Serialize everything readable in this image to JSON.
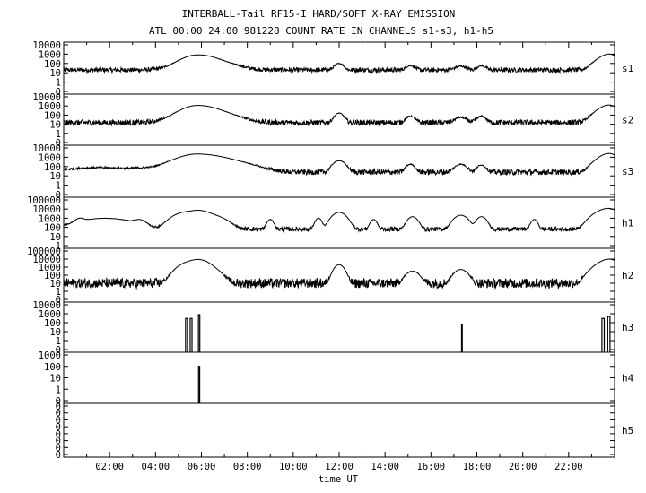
{
  "chart_data": {
    "type": "line",
    "title": "INTERBALL-Tail RF15-I HARD/SOFT X-RAY EMISSION",
    "subtitle": "ATL 00:00 24:00 981228  COUNT RATE IN CHANNELS s1-s3, h1-h5",
    "xlabel": "time UT",
    "x_range_hours": [
      0,
      24
    ],
    "x_ticks": [
      "02:00",
      "04:00",
      "06:00",
      "08:00",
      "10:00",
      "12:00",
      "14:00",
      "16:00",
      "18:00",
      "20:00",
      "22:00"
    ],
    "y_scale": "log",
    "grid": false,
    "panels": [
      {
        "name": "s1",
        "ytick_labels": [
          "10000",
          "1000",
          "100",
          "10",
          "1",
          "0"
        ],
        "baseline": 20,
        "noise": 0.25,
        "events": [
          [
            5.6,
            60,
            0.25
          ],
          [
            5.9,
            600,
            0.5
          ],
          [
            6.2,
            200,
            0.8
          ],
          [
            12.0,
            80,
            0.15
          ],
          [
            15.1,
            40,
            0.15
          ],
          [
            17.3,
            30,
            0.2
          ],
          [
            18.2,
            40,
            0.15
          ],
          [
            23.5,
            300,
            0.3
          ],
          [
            23.8,
            800,
            0.25
          ]
        ]
      },
      {
        "name": "s2",
        "ytick_labels": [
          "10000",
          "1000",
          "100",
          "10",
          "1",
          "0"
        ],
        "baseline": 15,
        "noise": 0.3,
        "events": [
          [
            5.6,
            100,
            0.25
          ],
          [
            5.9,
            800,
            0.5
          ],
          [
            6.2,
            300,
            0.8
          ],
          [
            12.0,
            150,
            0.15
          ],
          [
            15.1,
            60,
            0.15
          ],
          [
            17.3,
            40,
            0.2
          ],
          [
            18.2,
            60,
            0.15
          ],
          [
            23.5,
            400,
            0.3
          ],
          [
            23.8,
            1000,
            0.25
          ]
        ]
      },
      {
        "name": "s3",
        "ytick_labels": [
          "10000",
          "1000",
          "100",
          "10",
          "1",
          "0"
        ],
        "baseline": 25,
        "noise": 0.3,
        "events": [
          [
            1.5,
            50,
            1.2
          ],
          [
            3.5,
            30,
            0.5
          ],
          [
            5.6,
            300,
            0.3
          ],
          [
            5.9,
            1500,
            0.7
          ],
          [
            6.5,
            600,
            1.0
          ],
          [
            12.0,
            400,
            0.2
          ],
          [
            15.1,
            150,
            0.15
          ],
          [
            17.3,
            150,
            0.2
          ],
          [
            18.2,
            120,
            0.15
          ],
          [
            23.5,
            800,
            0.3
          ],
          [
            23.8,
            2000,
            0.25
          ]
        ]
      },
      {
        "name": "h1",
        "ytick_labels": [
          "100000",
          "10000",
          "1000",
          "100",
          "10",
          "1"
        ],
        "baseline": 10,
        "noise": 0.3,
        "events": [
          [
            0.7,
            200,
            0.15
          ],
          [
            1.8,
            300,
            0.8
          ],
          [
            3.3,
            150,
            0.2
          ],
          [
            5.3,
            2000,
            0.35
          ],
          [
            5.9,
            3000,
            0.3
          ],
          [
            6.4,
            800,
            0.4
          ],
          [
            9.0,
            200,
            0.1
          ],
          [
            11.1,
            300,
            0.1
          ],
          [
            12.0,
            2000,
            0.2
          ],
          [
            13.5,
            200,
            0.1
          ],
          [
            15.2,
            500,
            0.15
          ],
          [
            17.3,
            800,
            0.2
          ],
          [
            18.2,
            500,
            0.15
          ],
          [
            20.5,
            200,
            0.1
          ],
          [
            23.5,
            3000,
            0.3
          ],
          [
            23.8,
            5000,
            0.25
          ]
        ]
      },
      {
        "name": "h2",
        "ytick_labels": [
          "100000",
          "10000",
          "1000",
          "100",
          "10",
          "1",
          "0"
        ],
        "baseline": 10,
        "noise": 0.6,
        "events": [
          [
            5.4,
            3000,
            0.3
          ],
          [
            5.9,
            8000,
            0.3
          ],
          [
            6.4,
            500,
            0.3
          ],
          [
            12.0,
            2000,
            0.15
          ],
          [
            15.2,
            300,
            0.2
          ],
          [
            17.3,
            500,
            0.2
          ],
          [
            23.5,
            3000,
            0.3
          ],
          [
            23.8,
            8000,
            0.25
          ]
        ]
      },
      {
        "name": "h3",
        "ytick_labels": [
          "10000",
          "1000",
          "100",
          "10",
          "1",
          "0"
        ],
        "baseline": 0,
        "noise": 0,
        "events": [
          [
            5.35,
            300,
            0.08
          ],
          [
            5.55,
            300,
            0.08
          ],
          [
            5.9,
            800,
            0.06
          ],
          [
            17.35,
            60,
            0.03
          ],
          [
            23.5,
            300,
            0.1
          ],
          [
            23.75,
            500,
            0.1
          ]
        ]
      },
      {
        "name": "h4",
        "ytick_labels": [
          "1000",
          "100",
          "10",
          "1",
          "0"
        ],
        "baseline": 0,
        "noise": 0,
        "events": [
          [
            5.9,
            100,
            0.05
          ]
        ]
      },
      {
        "name": "h5",
        "ytick_labels": [
          "0",
          "0",
          "0",
          "0",
          "0",
          "0",
          "0",
          "0"
        ],
        "baseline": 0,
        "noise": 0,
        "events": []
      }
    ]
  }
}
